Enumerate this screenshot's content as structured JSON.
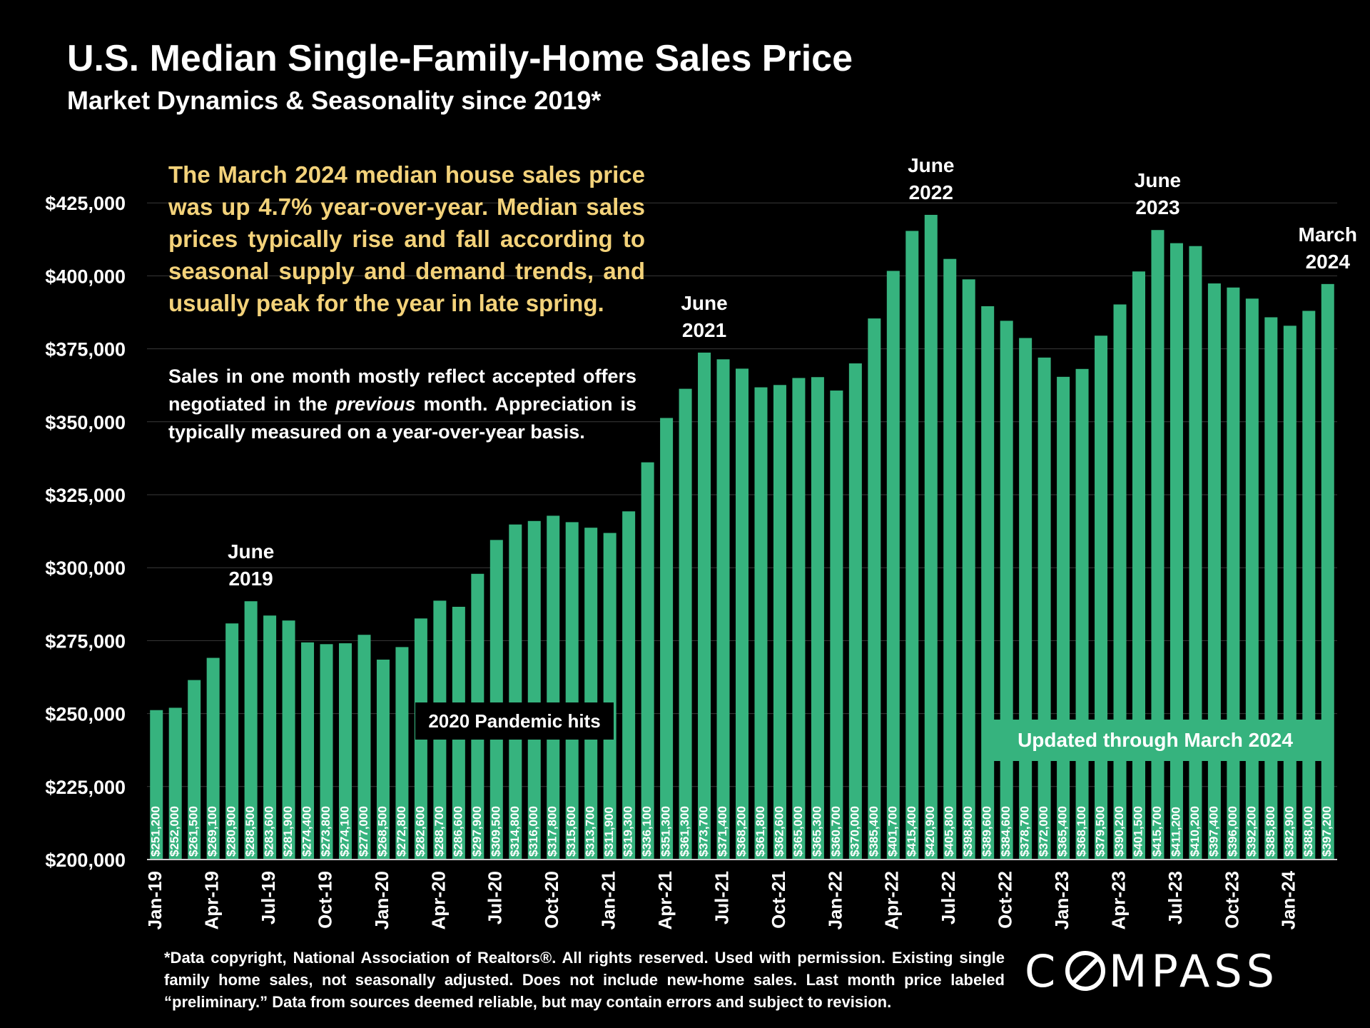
{
  "title": "U.S. Median Single-Family-Home Sales Price",
  "subtitle": "Market Dynamics & Seasonality since 2019*",
  "annotation_main": "The March 2024 median house sales price was up 4.7% year-over-year. Median sales prices typically rise and fall according to seasonal supply and demand trends, and usually peak for the year in late spring.",
  "annotation_secondary": {
    "before": "Sales in one month mostly reflect accepted offers negotiated in the ",
    "italic": "previous",
    "after": " month. Appreciation is typically measured on a year-over-year basis."
  },
  "pandemic_label": "2020 Pandemic hits",
  "updated_label": "Updated through March 2024",
  "footnote": "*Data copyright, National Association of Realtors®. All rights reserved. Used with permission. Existing single family home sales, not seasonally adjusted. Does not include new-home sales. Last month price labeled “preliminary.” Data from sources deemed reliable, but may contain errors and subject to revision.",
  "logo": {
    "text": "COMPASS",
    "color": "#ffffff"
  },
  "colors": {
    "bar": "#36b37e",
    "annotation": "#f3d27a",
    "background": "#000000",
    "grid": "#3a3a3a"
  },
  "chart_data": {
    "type": "bar",
    "ylim": [
      200000,
      440000
    ],
    "yticks": [
      200000,
      225000,
      250000,
      275000,
      300000,
      325000,
      350000,
      375000,
      400000,
      425000
    ],
    "ytick_labels": [
      "$200,000",
      "$225,000",
      "$250,000",
      "$275,000",
      "$300,000",
      "$325,000",
      "$350,000",
      "$375,000",
      "$400,000",
      "$425,000"
    ],
    "xtick_labels": [
      "Jan-19",
      "Apr-19",
      "Jul-19",
      "Oct-19",
      "Jan-20",
      "Apr-20",
      "Jul-20",
      "Oct-20",
      "Jan-21",
      "Apr-21",
      "Jul-21",
      "Oct-21",
      "Jan-22",
      "Apr-22",
      "Jul-22",
      "Oct-22",
      "Jan-23",
      "Apr-23",
      "Jul-23",
      "Oct-23",
      "Jan-24"
    ],
    "xtick_every": 3,
    "values": [
      251200,
      252000,
      261500,
      269100,
      280900,
      288500,
      283600,
      281900,
      274400,
      273800,
      274100,
      277000,
      268500,
      272800,
      282600,
      288700,
      286600,
      297900,
      309500,
      314800,
      316000,
      317800,
      315600,
      313700,
      311900,
      319300,
      336100,
      351300,
      361300,
      373700,
      371400,
      368200,
      361800,
      362600,
      365000,
      365300,
      360700,
      370000,
      385400,
      401700,
      415400,
      420900,
      405800,
      398800,
      389600,
      384600,
      378700,
      372000,
      365400,
      368100,
      379500,
      390200,
      401500,
      415700,
      411200,
      410200,
      397400,
      396000,
      392200,
      385800,
      382900,
      388000,
      397200
    ],
    "value_labels": [
      "$251,200",
      "$252,000",
      "$261,500",
      "$269,100",
      "$280,900",
      "$288,500",
      "$283,600",
      "$281,900",
      "$274,400",
      "$273,800",
      "$274,100",
      "$277,000",
      "$268,500",
      "$272,800",
      "$282,600",
      "$288,700",
      "$286,600",
      "$297,900",
      "$309,500",
      "$314,800",
      "$316,000",
      "$317,800",
      "$315,600",
      "$313,700",
      "$311,900",
      "$319,300",
      "$336,100",
      "$351,300",
      "$361,300",
      "$373,700",
      "$371,400",
      "$368,200",
      "$361,800",
      "$362,600",
      "$365,000",
      "$365,300",
      "$360,700",
      "$370,000",
      "$385,400",
      "$401,700",
      "$415,400",
      "$420,900",
      "$405,800",
      "$398,800",
      "$389,600",
      "$384,600",
      "$378,700",
      "$372,000",
      "$365,400",
      "$368,100",
      "$379,500",
      "$390,200",
      "$401,500",
      "$415,700",
      "$411,200",
      "$410,200",
      "$397,400",
      "$396,000",
      "$392,200",
      "$385,800",
      "$382,900",
      "$388,000",
      "$397,200"
    ],
    "annotations": [
      {
        "index": 5,
        "lines": [
          "June",
          "2019"
        ]
      },
      {
        "index": 29,
        "lines": [
          "June",
          "2021"
        ]
      },
      {
        "index": 41,
        "lines": [
          "June",
          "2022"
        ]
      },
      {
        "index": 53,
        "lines": [
          "June",
          "2023"
        ]
      },
      {
        "index": 62,
        "lines": [
          "March",
          "2024"
        ]
      }
    ],
    "grid": true
  }
}
